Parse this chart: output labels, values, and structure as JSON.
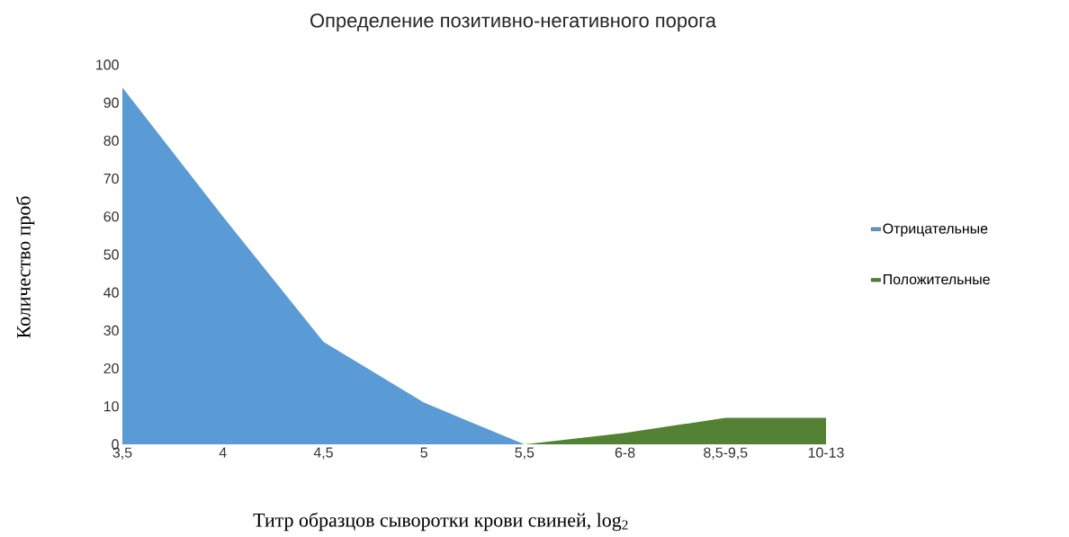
{
  "chart_data": {
    "type": "area",
    "title": "Определение позитивно-негативного порога",
    "xlabel": "Титр образцов сыворотки крови свиней, log$_{2}$",
    "ylabel": "Количество проб",
    "categories": [
      "3,5",
      "4",
      "4,5",
      "5",
      "5,5",
      "6-8",
      "8,5-9,5",
      "10-13"
    ],
    "series": [
      {
        "name": "Отрицательные",
        "color": "#5b9bd5",
        "values": [
          94,
          60,
          27,
          11,
          0,
          null,
          null,
          null
        ]
      },
      {
        "name": "Положительные",
        "color": "#548235",
        "values": [
          null,
          null,
          null,
          null,
          0,
          3,
          7,
          7
        ]
      }
    ],
    "ylim": [
      0,
      100
    ],
    "yticks": [
      0,
      10,
      20,
      30,
      40,
      50,
      60,
      70,
      80,
      90,
      100
    ],
    "legend": "right"
  }
}
